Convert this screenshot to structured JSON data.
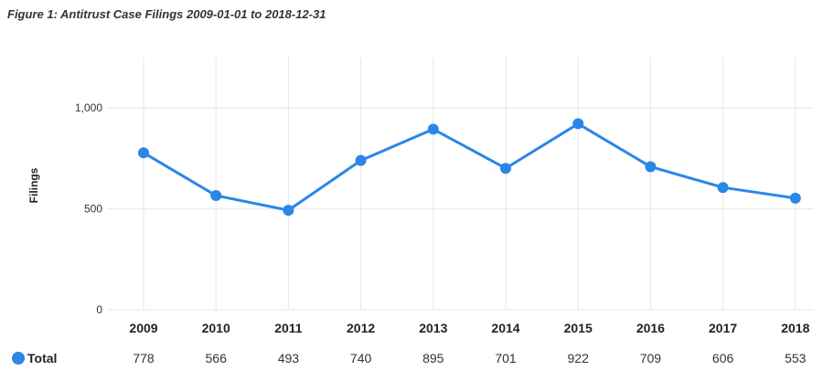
{
  "figure": {
    "title": "Figure 1: Antitrust Case Filings 2009-01-01 to 2018-12-31"
  },
  "chart_data": {
    "type": "line",
    "title": "Figure 1: Antitrust Case Filings 2009-01-01 to 2018-12-31",
    "xlabel": "",
    "ylabel": "Filings",
    "categories": [
      "2009",
      "2010",
      "2011",
      "2012",
      "2013",
      "2014",
      "2015",
      "2016",
      "2017",
      "2018"
    ],
    "yticks": [
      "0",
      "500",
      "1,000"
    ],
    "ylim": [
      0,
      1250
    ],
    "grid": true,
    "legend_position": "bottom-left",
    "series": [
      {
        "name": "Total",
        "color": "#2b86e8",
        "values": [
          778,
          566,
          493,
          740,
          895,
          701,
          922,
          709,
          606,
          553
        ],
        "labels": [
          "778",
          "566",
          "493",
          "740",
          "895",
          "701",
          "922",
          "709",
          "606",
          "553"
        ]
      }
    ]
  }
}
